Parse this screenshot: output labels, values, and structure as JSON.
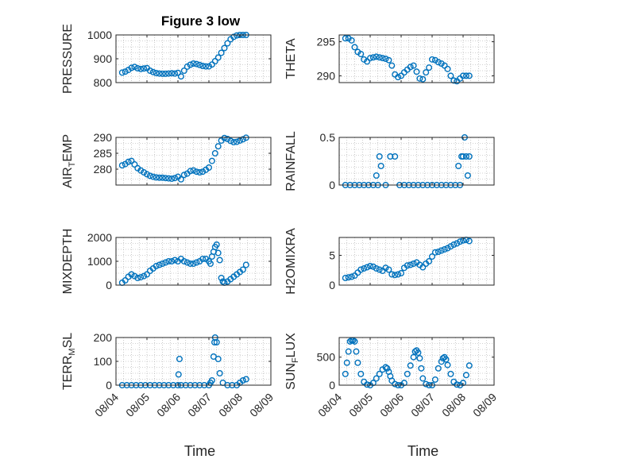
{
  "figure_title": "Figure 3 low",
  "colors": {
    "marker": "#0072BD",
    "axis": "#262626",
    "grid": "#a6a6a6",
    "background": "#ffffff"
  },
  "xaxis": {
    "label": "Time",
    "ticks": [
      "08/04",
      "08/05",
      "08/06",
      "08/07",
      "08/08",
      "08/09"
    ],
    "lim": [
      "08/04",
      "08/09"
    ]
  },
  "chart_data": [
    {
      "type": "scatter",
      "ylabel": "PRESSURE",
      "title": "Figure 3 low",
      "ylim": [
        800,
        1000
      ],
      "yticks": [
        800,
        900,
        1000
      ],
      "grid": true,
      "x": [
        4.2,
        4.3,
        4.4,
        4.5,
        4.6,
        4.7,
        4.8,
        4.9,
        5.0,
        5.1,
        5.2,
        5.3,
        5.4,
        5.5,
        5.6,
        5.7,
        5.8,
        5.9,
        6.0,
        6.1,
        6.2,
        6.3,
        6.4,
        6.5,
        6.6,
        6.7,
        6.8,
        6.9,
        7.0,
        7.1,
        7.2,
        7.3,
        7.4,
        7.5,
        7.6,
        7.7,
        7.8,
        7.9,
        8.0,
        8.1,
        8.2
      ],
      "y": [
        842,
        846,
        853,
        862,
        866,
        860,
        857,
        859,
        861,
        850,
        844,
        840,
        838,
        837,
        837,
        838,
        839,
        838,
        841,
        826,
        850,
        867,
        875,
        880,
        878,
        874,
        870,
        868,
        868,
        876,
        890,
        905,
        925,
        945,
        965,
        982,
        992,
        998,
        1000,
        1000,
        1000
      ]
    },
    {
      "type": "scatter",
      "ylabel": "THETA",
      "ylim": [
        289,
        296
      ],
      "yticks": [
        290,
        295
      ],
      "grid": true,
      "x": [
        4.2,
        4.3,
        4.4,
        4.5,
        4.6,
        4.7,
        4.8,
        4.9,
        5.0,
        5.1,
        5.2,
        5.3,
        5.4,
        5.5,
        5.6,
        5.7,
        5.8,
        5.9,
        6.0,
        6.1,
        6.2,
        6.3,
        6.4,
        6.5,
        6.6,
        6.7,
        6.8,
        6.9,
        7.0,
        7.1,
        7.2,
        7.3,
        7.4,
        7.5,
        7.6,
        7.7,
        7.8,
        7.9,
        8.0,
        8.1,
        8.2
      ],
      "y": [
        295.5,
        295.5,
        295.2,
        294.2,
        293.5,
        293.2,
        292.4,
        292.1,
        292.6,
        292.7,
        292.8,
        292.7,
        292.6,
        292.5,
        292.3,
        291.5,
        290.2,
        289.8,
        290.0,
        290.5,
        290.9,
        291.3,
        291.5,
        290.6,
        289.6,
        289.5,
        290.5,
        291.2,
        292.4,
        292.3,
        292.0,
        291.8,
        291.5,
        291.0,
        290.0,
        289.3,
        289.2,
        289.6,
        290.0,
        290.0,
        290.0
      ]
    },
    {
      "type": "scatter",
      "ylabel": "AIR_TEMP",
      "ylim": [
        275,
        290
      ],
      "yticks": [
        280,
        285,
        290
      ],
      "grid": true,
      "x": [
        4.2,
        4.3,
        4.4,
        4.5,
        4.6,
        4.7,
        4.8,
        4.9,
        5.0,
        5.1,
        5.2,
        5.3,
        5.4,
        5.5,
        5.6,
        5.7,
        5.8,
        5.9,
        6.0,
        6.1,
        6.2,
        6.3,
        6.4,
        6.5,
        6.6,
        6.7,
        6.8,
        6.9,
        7.0,
        7.1,
        7.2,
        7.3,
        7.4,
        7.5,
        7.6,
        7.7,
        7.8,
        7.9,
        8.0,
        8.1,
        8.2
      ],
      "y": [
        281.2,
        281.6,
        282.3,
        282.6,
        281.5,
        280.3,
        279.6,
        279.0,
        278.4,
        277.9,
        277.6,
        277.4,
        277.3,
        277.3,
        277.2,
        277.1,
        277.0,
        277.2,
        277.6,
        276.8,
        278.2,
        278.6,
        279.4,
        279.6,
        279.2,
        279.0,
        279.2,
        279.8,
        280.5,
        282.6,
        285.0,
        287.2,
        289.0,
        289.8,
        289.5,
        288.9,
        288.5,
        288.6,
        289.0,
        289.4,
        289.9
      ]
    },
    {
      "type": "scatter",
      "ylabel": "RAINFALL",
      "ylim": [
        0,
        0.5
      ],
      "yticks": [
        0,
        0.5
      ],
      "grid": true,
      "x": [
        4.2,
        4.35,
        4.5,
        4.65,
        4.8,
        4.95,
        5.1,
        5.2,
        5.25,
        5.3,
        5.35,
        5.5,
        5.65,
        5.8,
        5.95,
        6.1,
        6.25,
        6.4,
        6.55,
        6.7,
        6.85,
        7.0,
        7.15,
        7.3,
        7.45,
        7.6,
        7.75,
        7.85,
        7.9,
        7.95,
        8.0,
        8.05,
        8.1,
        8.15,
        8.2
      ],
      "y": [
        0,
        0,
        0,
        0,
        0,
        0,
        0,
        0.1,
        0,
        0.3,
        0.2,
        0,
        0.3,
        0.3,
        0,
        0,
        0,
        0,
        0,
        0,
        0,
        0,
        0,
        0,
        0,
        0,
        0,
        0.2,
        0,
        0.3,
        0.3,
        0.5,
        0.3,
        0.1,
        0.3
      ]
    },
    {
      "type": "scatter",
      "ylabel": "MIXDEPTH",
      "ylim": [
        0,
        2000
      ],
      "yticks": [
        0,
        1000,
        2000
      ],
      "grid": true,
      "x": [
        4.2,
        4.3,
        4.4,
        4.5,
        4.6,
        4.7,
        4.8,
        4.9,
        5.0,
        5.1,
        5.2,
        5.3,
        5.4,
        5.5,
        5.6,
        5.7,
        5.8,
        5.9,
        6.0,
        6.1,
        6.2,
        6.3,
        6.4,
        6.5,
        6.6,
        6.7,
        6.8,
        6.9,
        7.0,
        7.05,
        7.1,
        7.15,
        7.2,
        7.25,
        7.3,
        7.35,
        7.4,
        7.45,
        7.5,
        7.6,
        7.7,
        7.8,
        7.9,
        8.0,
        8.1,
        8.2
      ],
      "y": [
        100,
        200,
        350,
        450,
        380,
        300,
        330,
        380,
        450,
        600,
        700,
        800,
        850,
        900,
        950,
        1000,
        1000,
        1050,
        1000,
        1100,
        1000,
        950,
        900,
        900,
        950,
        1000,
        1100,
        1100,
        1000,
        900,
        1200,
        1400,
        1600,
        1700,
        1350,
        1050,
        300,
        150,
        100,
        150,
        250,
        350,
        450,
        550,
        650,
        850
      ]
    },
    {
      "type": "scatter",
      "ylabel": "H2OMIXRA",
      "ylim": [
        0,
        8
      ],
      "yticks": [
        0,
        5
      ],
      "grid": true,
      "x": [
        4.2,
        4.3,
        4.4,
        4.5,
        4.6,
        4.7,
        4.8,
        4.9,
        5.0,
        5.1,
        5.2,
        5.3,
        5.4,
        5.5,
        5.6,
        5.7,
        5.8,
        5.9,
        6.0,
        6.1,
        6.2,
        6.3,
        6.4,
        6.5,
        6.6,
        6.7,
        6.8,
        6.9,
        7.0,
        7.1,
        7.2,
        7.3,
        7.4,
        7.5,
        7.6,
        7.7,
        7.8,
        7.9,
        8.0,
        8.1,
        8.2
      ],
      "y": [
        1.2,
        1.3,
        1.4,
        1.6,
        2.1,
        2.6,
        2.8,
        3.0,
        3.2,
        3.1,
        2.8,
        2.6,
        2.4,
        2.9,
        2.6,
        1.8,
        1.7,
        1.8,
        2.0,
        2.9,
        3.3,
        3.4,
        3.6,
        3.8,
        3.4,
        3.0,
        3.6,
        4.0,
        4.8,
        5.5,
        5.6,
        5.8,
        6.0,
        6.2,
        6.5,
        6.8,
        7.0,
        7.3,
        7.5,
        7.6,
        7.4
      ]
    },
    {
      "type": "scatter",
      "ylabel": "TERR_MSL",
      "ylim": [
        0,
        200
      ],
      "yticks": [
        0,
        100,
        200
      ],
      "grid": true,
      "x": [
        4.2,
        4.35,
        4.5,
        4.65,
        4.8,
        4.95,
        5.1,
        5.25,
        5.4,
        5.55,
        5.7,
        5.85,
        6.0,
        6.02,
        6.05,
        6.1,
        6.25,
        6.4,
        6.55,
        6.7,
        6.85,
        7.0,
        7.05,
        7.1,
        7.15,
        7.18,
        7.2,
        7.25,
        7.3,
        7.35,
        7.45,
        7.6,
        7.75,
        7.9,
        8.0,
        8.1,
        8.2
      ],
      "y": [
        0,
        0,
        0,
        0,
        0,
        0,
        0,
        0,
        0,
        0,
        0,
        0,
        0,
        45,
        110,
        0,
        0,
        0,
        0,
        0,
        0,
        0,
        10,
        20,
        120,
        180,
        200,
        180,
        110,
        50,
        10,
        0,
        0,
        0,
        10,
        20,
        25
      ]
    },
    {
      "type": "scatter",
      "ylabel": "SUN_FLUX",
      "ylim": [
        0,
        850
      ],
      "yticks": [
        0,
        500
      ],
      "grid": true,
      "x": [
        4.2,
        4.25,
        4.3,
        4.35,
        4.4,
        4.45,
        4.5,
        4.55,
        4.6,
        4.7,
        4.8,
        4.9,
        5.0,
        5.1,
        5.2,
        5.3,
        5.4,
        5.5,
        5.55,
        5.6,
        5.65,
        5.7,
        5.8,
        5.9,
        6.0,
        6.1,
        6.2,
        6.3,
        6.4,
        6.45,
        6.5,
        6.55,
        6.6,
        6.65,
        6.7,
        6.8,
        6.9,
        7.0,
        7.1,
        7.2,
        7.3,
        7.35,
        7.4,
        7.45,
        7.5,
        7.6,
        7.7,
        7.8,
        7.9,
        8.0,
        8.1,
        8.2
      ],
      "y": [
        200,
        400,
        600,
        780,
        800,
        800,
        780,
        600,
        400,
        200,
        60,
        10,
        0,
        40,
        120,
        200,
        280,
        320,
        300,
        240,
        160,
        80,
        20,
        0,
        0,
        40,
        200,
        350,
        500,
        600,
        620,
        580,
        480,
        300,
        120,
        20,
        0,
        0,
        100,
        300,
        420,
        480,
        500,
        460,
        360,
        200,
        60,
        10,
        0,
        40,
        180,
        350
      ]
    }
  ]
}
